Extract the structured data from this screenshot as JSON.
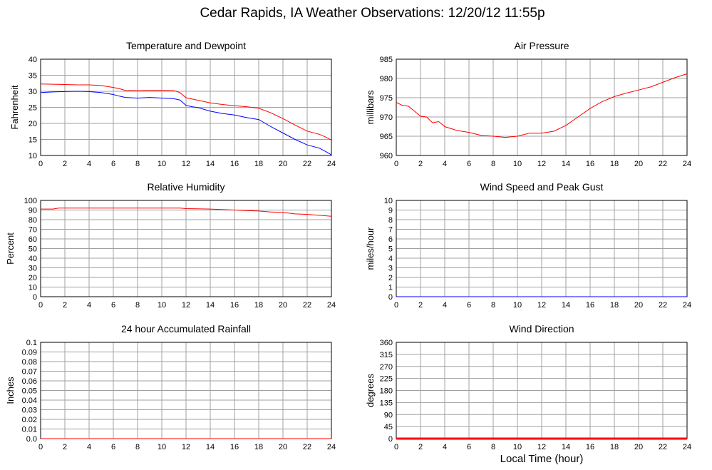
{
  "page_title": "Cedar Rapids, IA Weather Observations: 12/20/12 11:55p",
  "xaxis_label": "Local Time (hour)",
  "colors": {
    "primary": "#ff0000",
    "secondary": "#0000ff",
    "grid": "#a0a0a0"
  },
  "chart_data": [
    {
      "id": "temp",
      "type": "line",
      "title": "Temperature and Dewpoint",
      "ylabel": "Fahrenheit",
      "xlim": [
        0,
        24
      ],
      "ylim": [
        10,
        40
      ],
      "yticks": [
        10,
        15,
        20,
        25,
        30,
        35,
        40
      ],
      "xticks": [
        0,
        2,
        4,
        6,
        8,
        10,
        12,
        14,
        16,
        18,
        20,
        22,
        24
      ],
      "grid": true,
      "series": [
        {
          "color": "#ff0000",
          "x": [
            0,
            1,
            2,
            3,
            4,
            5,
            6,
            6.5,
            7,
            8,
            9,
            10,
            11,
            11.5,
            12,
            13,
            14,
            15,
            16,
            17,
            18,
            19,
            20,
            21,
            22,
            23,
            23.5,
            24
          ],
          "y": [
            32.3,
            32.2,
            32.1,
            32.0,
            32.0,
            31.8,
            31.2,
            30.8,
            30.3,
            30.2,
            30.3,
            30.3,
            30.2,
            29.6,
            28.0,
            27.2,
            26.4,
            25.9,
            25.5,
            25.2,
            24.7,
            23.3,
            21.5,
            19.5,
            17.6,
            16.6,
            15.8,
            14.8
          ]
        },
        {
          "color": "#0000ff",
          "x": [
            0,
            1,
            2,
            3,
            4,
            5,
            6,
            6.5,
            7,
            8,
            9,
            10,
            11,
            11.5,
            12,
            12.5,
            13,
            14,
            15,
            16,
            17,
            18,
            19,
            20,
            21,
            22,
            23,
            23.5,
            24
          ],
          "y": [
            29.6,
            29.8,
            29.9,
            30.0,
            29.9,
            29.6,
            29.0,
            28.5,
            28.1,
            27.9,
            28.1,
            27.9,
            27.7,
            27.3,
            25.6,
            25.2,
            24.9,
            23.8,
            23.1,
            22.6,
            21.8,
            21.2,
            19.0,
            17.0,
            15.0,
            13.3,
            12.3,
            11.3,
            10.2
          ]
        }
      ]
    },
    {
      "id": "pressure",
      "type": "line",
      "title": "Air Pressure",
      "ylabel": "millibars",
      "xlim": [
        0,
        24
      ],
      "ylim": [
        960,
        985
      ],
      "yticks": [
        960,
        965,
        970,
        975,
        980,
        985
      ],
      "xticks": [
        0,
        2,
        4,
        6,
        8,
        10,
        12,
        14,
        16,
        18,
        20,
        22,
        24
      ],
      "grid": true,
      "series": [
        {
          "color": "#ff0000",
          "x": [
            0,
            0.5,
            1,
            1.5,
            2,
            2.5,
            3,
            3.5,
            4,
            5,
            6,
            7,
            8,
            9,
            10,
            11,
            12,
            13,
            14,
            15,
            16,
            17,
            18,
            19,
            20,
            21,
            22,
            23,
            24
          ],
          "y": [
            973.8,
            973.0,
            972.8,
            971.5,
            970.2,
            970.0,
            968.5,
            968.8,
            967.5,
            966.5,
            966.0,
            965.2,
            965.0,
            964.7,
            965.0,
            965.8,
            965.8,
            966.3,
            967.8,
            970.0,
            972.2,
            974.0,
            975.3,
            976.2,
            977.0,
            977.8,
            979.0,
            980.2,
            981.2
          ]
        }
      ]
    },
    {
      "id": "humidity",
      "type": "line",
      "title": "Relative Humidity",
      "ylabel": "Percent",
      "xlim": [
        0,
        24
      ],
      "ylim": [
        0,
        100
      ],
      "yticks": [
        0,
        10,
        20,
        30,
        40,
        50,
        60,
        70,
        80,
        90,
        100
      ],
      "xticks": [
        0,
        2,
        4,
        6,
        8,
        10,
        12,
        14,
        16,
        18,
        20,
        22,
        24
      ],
      "grid": true,
      "series": [
        {
          "color": "#ff0000",
          "x": [
            0,
            1,
            1.5,
            2,
            4,
            6,
            8,
            10,
            11.5,
            12,
            14,
            16,
            17,
            18,
            19,
            20,
            21,
            22,
            23,
            24
          ],
          "y": [
            91,
            91,
            92,
            92,
            92,
            92,
            92,
            92,
            92,
            91.5,
            91,
            90,
            89.5,
            89,
            88,
            87.5,
            86,
            85.5,
            84.5,
            83.5
          ]
        }
      ]
    },
    {
      "id": "wind",
      "type": "line",
      "title": "Wind Speed and Peak Gust",
      "ylabel": "miles/hour",
      "xlim": [
        0,
        24
      ],
      "ylim": [
        0,
        10
      ],
      "yticks": [
        0,
        1,
        2,
        3,
        4,
        5,
        6,
        7,
        8,
        9,
        10
      ],
      "xticks": [
        0,
        2,
        4,
        6,
        8,
        10,
        12,
        14,
        16,
        18,
        20,
        22,
        24
      ],
      "grid": true,
      "series": [
        {
          "color": "#0000ff",
          "x": [
            0,
            24
          ],
          "y": [
            0,
            0
          ]
        }
      ]
    },
    {
      "id": "rain",
      "type": "line",
      "title": "24 hour Accumulated Rainfall",
      "ylabel": "Inches",
      "xlim": [
        0,
        24
      ],
      "ylim": [
        0,
        0.1
      ],
      "yticks": [
        0,
        0.01,
        0.02,
        0.03,
        0.04,
        0.05,
        0.06,
        0.07,
        0.08,
        0.09,
        0.1
      ],
      "ytick_labels": [
        "0.0",
        "0.01",
        "0.02",
        "0.03",
        "0.04",
        "0.05",
        "0.06",
        "0.07",
        "0.08",
        "0.09",
        "0.1"
      ],
      "xticks": [
        0,
        2,
        4,
        6,
        8,
        10,
        12,
        14,
        16,
        18,
        20,
        22,
        24
      ],
      "grid": true,
      "series": [
        {
          "color": "#ff0000",
          "x": [
            0,
            24
          ],
          "y": [
            0,
            0
          ]
        }
      ]
    },
    {
      "id": "direction",
      "type": "line",
      "title": "Wind Direction",
      "ylabel": "degrees",
      "xlim": [
        0,
        24
      ],
      "ylim": [
        0,
        360
      ],
      "yticks": [
        0,
        45,
        90,
        135,
        180,
        225,
        270,
        315,
        360
      ],
      "xticks": [
        0,
        2,
        4,
        6,
        8,
        10,
        12,
        14,
        16,
        18,
        20,
        22,
        24
      ],
      "grid": true,
      "series": [
        {
          "color": "#ff0000",
          "thick": true,
          "x": [
            0,
            24
          ],
          "y": [
            0,
            0
          ]
        }
      ]
    }
  ]
}
